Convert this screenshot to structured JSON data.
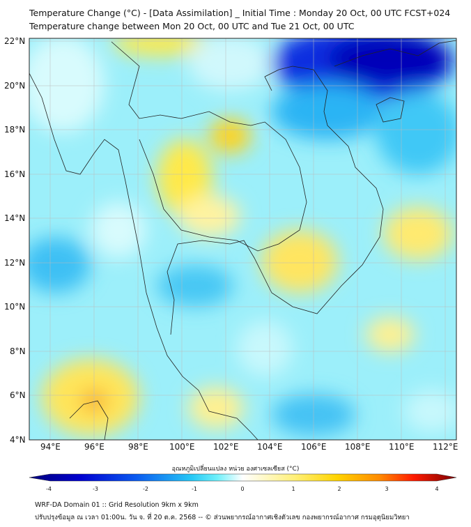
{
  "header": {
    "title": "Temperature Change (°C) - [Data Assimilation] _ Initial Time : Monday 20 Oct, 00 UTC FCST+024",
    "subtitle": "Temperature change between Mon 20 Oct, 00 UTC and Tue 21 Oct, 00 UTC"
  },
  "map": {
    "lat_labels": [
      "22°N",
      "20°N",
      "18°N",
      "16°N",
      "14°N",
      "12°N",
      "10°N",
      "8°N",
      "6°N",
      "4°N"
    ],
    "lon_labels": [
      "94°E",
      "96°E",
      "98°E",
      "100°E",
      "102°E",
      "104°E",
      "106°E",
      "108°E",
      "110°E",
      "112°E"
    ],
    "extent": {
      "lon": [
        93,
        112.5
      ],
      "lat": [
        4,
        22.1
      ]
    }
  },
  "colorbar": {
    "label": "อุณหภูมิเปลี่ยนแปลง หน่วย องศาเซลเซียส (°C)",
    "ticks": [
      "-4",
      "-3",
      "-2",
      "-1",
      "0",
      "1",
      "2",
      "3",
      "4"
    ],
    "range": [
      -4,
      4
    ],
    "colors": [
      "#00007a",
      "#0000d0",
      "#0a5af0",
      "#26c8f5",
      "#3ce8f8",
      "#ffffff",
      "#fff07a",
      "#ffd400",
      "#ff8a00",
      "#ff1a00",
      "#7a0000"
    ]
  },
  "footer": {
    "line1": "WRF-DA Domain 01 :: Grid Resolution 9km x 9km",
    "line2": "ปรับปรุงข้อมูล ณ เวลา 01:00น. วัน จ. ที่ 20 ต.ค. 2568 -- © ส่วนพยากรณ์อากาศเชิงตัวเลข กองพยากรณ์อากาศ กรมอุตุนิยมวิทยา"
  }
}
